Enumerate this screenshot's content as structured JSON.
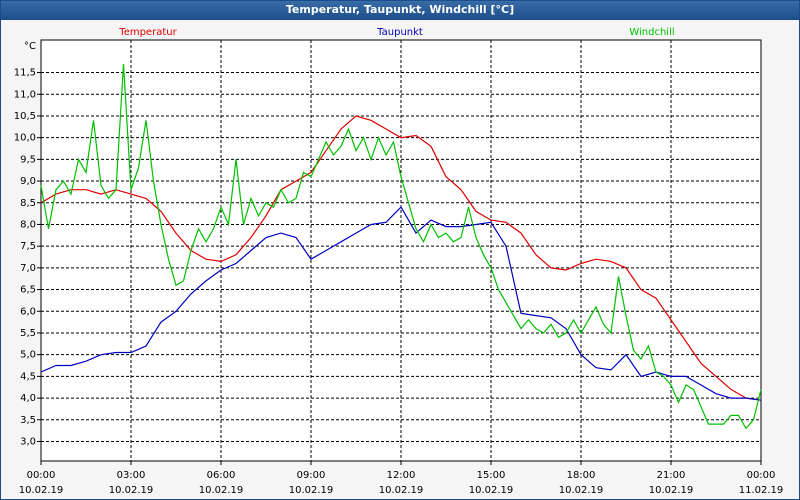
{
  "chart_data": {
    "type": "line",
    "title": "Temperatur, Taupunkt, Windchill [°C]",
    "unit": "°C",
    "xlim": [
      0,
      24
    ],
    "ylim": [
      2.55,
      12.25
    ],
    "grid": true,
    "xticks": [
      {
        "value": 0,
        "label": "00:00",
        "date": "10.02.19"
      },
      {
        "value": 3,
        "label": "03:00",
        "date": "10.02.19"
      },
      {
        "value": 6,
        "label": "06:00",
        "date": "10.02.19"
      },
      {
        "value": 9,
        "label": "09:00",
        "date": "10.02.19"
      },
      {
        "value": 12,
        "label": "12:00",
        "date": "10.02.19"
      },
      {
        "value": 15,
        "label": "15:00",
        "date": "10.02.19"
      },
      {
        "value": 18,
        "label": "18:00",
        "date": "10.02.19"
      },
      {
        "value": 21,
        "label": "21:00",
        "date": "10.02.19"
      },
      {
        "value": 24,
        "label": "00:00",
        "date": "11.02.19"
      }
    ],
    "yticks": [
      {
        "value": 3.0,
        "label": "3,0"
      },
      {
        "value": 3.5,
        "label": "3,5"
      },
      {
        "value": 4.0,
        "label": "4,0"
      },
      {
        "value": 4.5,
        "label": "4,5"
      },
      {
        "value": 5.0,
        "label": "5,0"
      },
      {
        "value": 5.5,
        "label": "5,5"
      },
      {
        "value": 6.0,
        "label": "6,0"
      },
      {
        "value": 6.5,
        "label": "6,5"
      },
      {
        "value": 7.0,
        "label": "7,0"
      },
      {
        "value": 7.5,
        "label": "7,5"
      },
      {
        "value": 8.0,
        "label": "8,0"
      },
      {
        "value": 8.5,
        "label": "8,5"
      },
      {
        "value": 9.0,
        "label": "9,0"
      },
      {
        "value": 9.5,
        "label": "9,5"
      },
      {
        "value": 10.0,
        "label": "10,0"
      },
      {
        "value": 10.5,
        "label": "10,5"
      },
      {
        "value": 11.0,
        "label": "11,0"
      },
      {
        "value": 11.5,
        "label": "11,5"
      }
    ],
    "series": [
      {
        "name": "Temperatur",
        "color": "#e00000",
        "x": [
          0,
          0.5,
          1,
          1.5,
          2,
          2.5,
          3,
          3.5,
          4,
          4.5,
          5,
          5.5,
          6,
          6.5,
          7,
          7.5,
          8,
          8.5,
          9,
          9.5,
          10,
          10.5,
          11,
          11.5,
          12,
          12.5,
          13,
          13.5,
          14,
          14.5,
          15,
          15.5,
          16,
          16.5,
          17,
          17.5,
          18,
          18.5,
          19,
          19.5,
          20,
          20.5,
          21,
          21.5,
          22,
          22.5,
          23,
          23.5,
          24
        ],
        "values": [
          8.5,
          8.7,
          8.8,
          8.8,
          8.7,
          8.8,
          8.7,
          8.6,
          8.3,
          7.8,
          7.4,
          7.2,
          7.15,
          7.3,
          7.7,
          8.2,
          8.8,
          9.0,
          9.2,
          9.7,
          10.2,
          10.5,
          10.4,
          10.2,
          10.0,
          10.05,
          9.8,
          9.1,
          8.8,
          8.3,
          8.1,
          8.05,
          7.8,
          7.3,
          7.0,
          6.95,
          7.1,
          7.2,
          7.15,
          7.0,
          6.5,
          6.3,
          5.8,
          5.3,
          4.8,
          4.5,
          4.2,
          4.0,
          3.95
        ]
      },
      {
        "name": "Taupunkt",
        "color": "#0000c0",
        "x": [
          0,
          0.5,
          1,
          1.5,
          2,
          2.5,
          3,
          3.5,
          4,
          4.5,
          5,
          5.5,
          6,
          6.5,
          7,
          7.5,
          8,
          8.5,
          9,
          9.5,
          10,
          10.5,
          11,
          11.5,
          12,
          12.5,
          13,
          13.5,
          14,
          14.5,
          15,
          15.5,
          16,
          16.5,
          17,
          17.5,
          18,
          18.5,
          19,
          19.5,
          20,
          20.5,
          21,
          21.5,
          22,
          22.5,
          23,
          23.5,
          24
        ],
        "values": [
          4.6,
          4.75,
          4.75,
          4.85,
          5.0,
          5.05,
          5.05,
          5.2,
          5.75,
          6.0,
          6.4,
          6.7,
          6.95,
          7.1,
          7.4,
          7.7,
          7.8,
          7.7,
          7.2,
          7.4,
          7.6,
          7.8,
          8.0,
          8.05,
          8.4,
          7.8,
          8.1,
          7.95,
          7.95,
          8.0,
          8.05,
          7.5,
          5.95,
          5.9,
          5.85,
          5.6,
          5.0,
          4.7,
          4.65,
          5.0,
          4.5,
          4.6,
          4.5,
          4.5,
          4.3,
          4.1,
          4.0,
          4.0,
          3.95
        ]
      },
      {
        "name": "Windchill",
        "color": "#00c000",
        "x": [
          0,
          0.25,
          0.5,
          0.75,
          1,
          1.25,
          1.5,
          1.75,
          2,
          2.25,
          2.5,
          2.75,
          3,
          3.25,
          3.5,
          3.75,
          4,
          4.25,
          4.5,
          4.75,
          5,
          5.25,
          5.5,
          5.75,
          6,
          6.25,
          6.5,
          6.75,
          7,
          7.25,
          7.5,
          7.75,
          8,
          8.25,
          8.5,
          8.75,
          9,
          9.25,
          9.5,
          9.75,
          10,
          10.25,
          10.5,
          10.75,
          11,
          11.25,
          11.5,
          11.75,
          12,
          12.25,
          12.5,
          12.75,
          13,
          13.25,
          13.5,
          13.75,
          14,
          14.25,
          14.5,
          14.75,
          15,
          15.25,
          15.5,
          15.75,
          16,
          16.25,
          16.5,
          16.75,
          17,
          17.25,
          17.5,
          17.75,
          18,
          18.25,
          18.5,
          18.75,
          19,
          19.25,
          19.5,
          19.75,
          20,
          20.25,
          20.5,
          20.75,
          21,
          21.25,
          21.5,
          21.75,
          22,
          22.25,
          22.5,
          22.75,
          23,
          23.25,
          23.5,
          23.75,
          24
        ],
        "values": [
          8.9,
          7.9,
          8.8,
          9.0,
          8.7,
          9.5,
          9.2,
          10.4,
          8.9,
          8.6,
          8.8,
          11.7,
          8.8,
          9.3,
          10.4,
          9.0,
          8.0,
          7.2,
          6.6,
          6.7,
          7.4,
          7.9,
          7.6,
          7.9,
          8.4,
          8.0,
          9.5,
          8.0,
          8.6,
          8.2,
          8.5,
          8.4,
          8.8,
          8.5,
          8.6,
          9.2,
          9.1,
          9.5,
          9.9,
          9.6,
          9.8,
          10.2,
          9.7,
          10.0,
          9.5,
          10.0,
          9.6,
          9.9,
          9.1,
          8.5,
          7.9,
          7.6,
          8.0,
          7.7,
          7.8,
          7.6,
          7.7,
          8.4,
          7.7,
          7.3,
          7.0,
          6.5,
          6.2,
          5.9,
          5.6,
          5.8,
          5.6,
          5.5,
          5.7,
          5.4,
          5.5,
          5.8,
          5.5,
          5.8,
          6.1,
          5.7,
          5.5,
          6.8,
          5.9,
          5.1,
          4.9,
          5.2,
          4.6,
          4.5,
          4.3,
          3.9,
          4.3,
          4.2,
          3.8,
          3.4,
          3.4,
          3.4,
          3.6,
          3.6,
          3.3,
          3.5,
          4.2
        ]
      }
    ]
  }
}
